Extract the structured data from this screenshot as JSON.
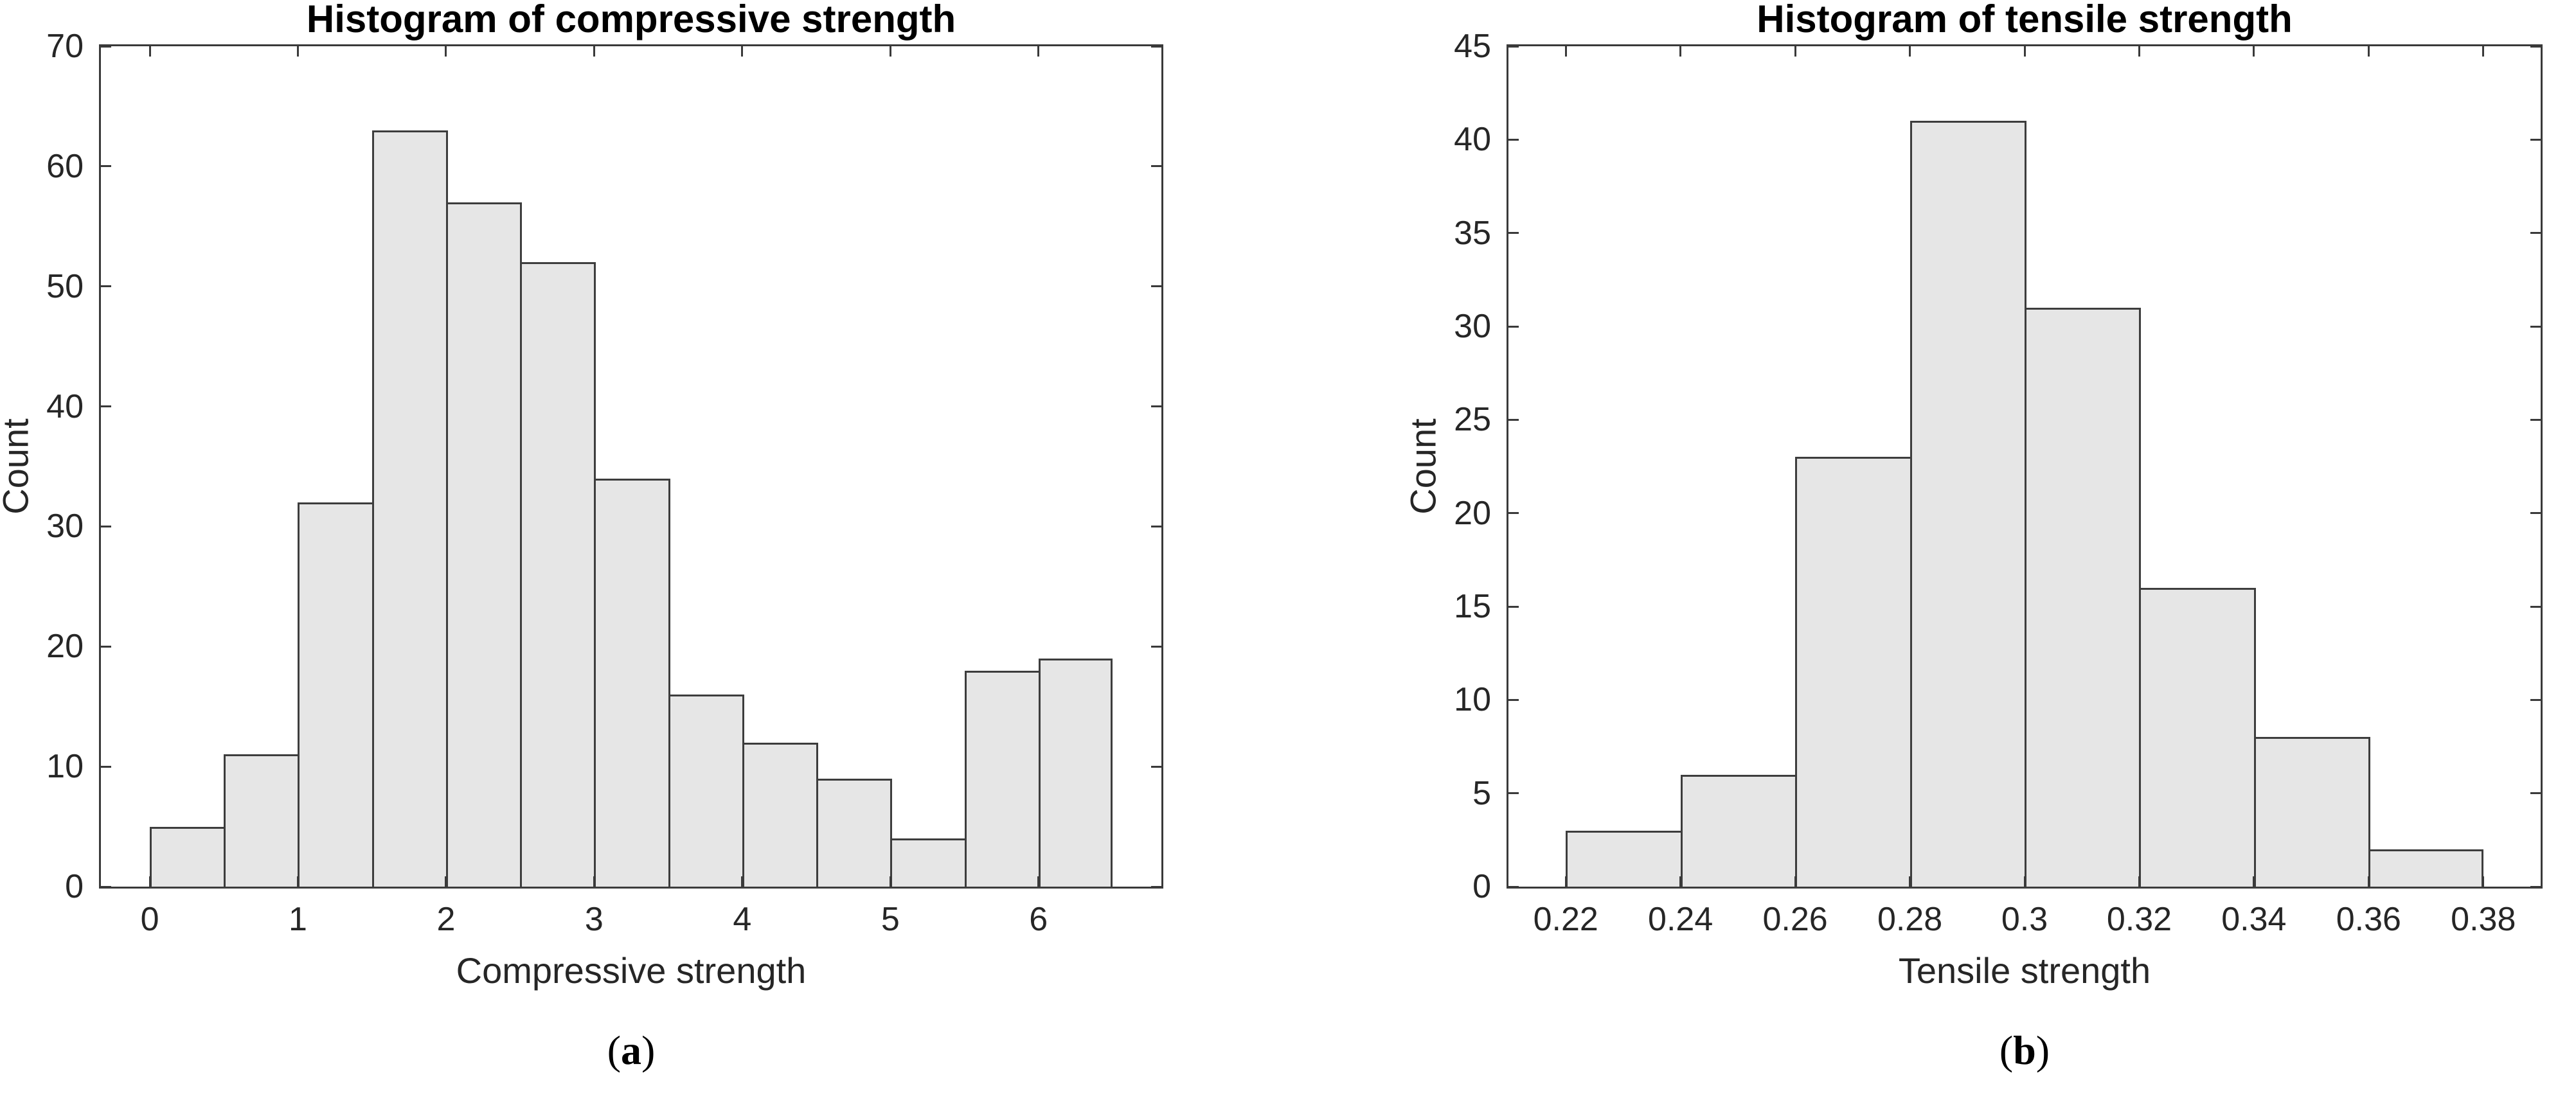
{
  "figure": {
    "background": "#ffffff",
    "colors": {
      "bar_fill": "#e6e6e6",
      "bar_edge": "#3d3d3d",
      "axis": "#3a3a3a",
      "tick_text": "#262626",
      "title_text": "#000000"
    }
  },
  "chart_data": [
    {
      "type": "bar",
      "subtype": "histogram",
      "title": "Histogram of compressive strength",
      "xlabel": "Compressive strength",
      "ylabel": "Count",
      "caption": "(a)",
      "caption_open": "(",
      "caption_letter": "a",
      "caption_close": ")",
      "bin_start": 0,
      "bin_width": 0.5,
      "bin_edges": [
        0,
        0.5,
        1,
        1.5,
        2,
        2.5,
        3,
        3.5,
        4,
        4.5,
        5,
        5.5,
        6,
        6.5
      ],
      "values": [
        5,
        11,
        32,
        63,
        57,
        52,
        34,
        16,
        12,
        9,
        4,
        18,
        19
      ],
      "xlim": [
        -0.33,
        6.83
      ],
      "ylim": [
        0,
        70
      ],
      "xticks": [
        0,
        1,
        2,
        3,
        4,
        5,
        6
      ],
      "yticks": [
        0,
        10,
        20,
        30,
        40,
        50,
        60,
        70
      ],
      "grid": false,
      "legend": null
    },
    {
      "type": "bar",
      "subtype": "histogram",
      "title": "Histogram of tensile strength",
      "xlabel": "Tensile strength",
      "ylabel": "Count",
      "caption": "(b)",
      "caption_open": "(",
      "caption_letter": "b",
      "caption_close": ")",
      "bin_start": 0.22,
      "bin_width": 0.02,
      "bin_edges": [
        0.22,
        0.24,
        0.26,
        0.28,
        0.3,
        0.32,
        0.34,
        0.36,
        0.38
      ],
      "values": [
        3,
        6,
        23,
        41,
        31,
        16,
        8,
        2
      ],
      "xlim": [
        0.21,
        0.39
      ],
      "ylim": [
        0,
        45
      ],
      "xticks": [
        0.22,
        0.24,
        0.26,
        0.28,
        0.3,
        0.32,
        0.34,
        0.36,
        0.38
      ],
      "yticks": [
        0,
        5,
        10,
        15,
        20,
        25,
        30,
        35,
        40,
        45
      ],
      "grid": false,
      "legend": null
    }
  ]
}
